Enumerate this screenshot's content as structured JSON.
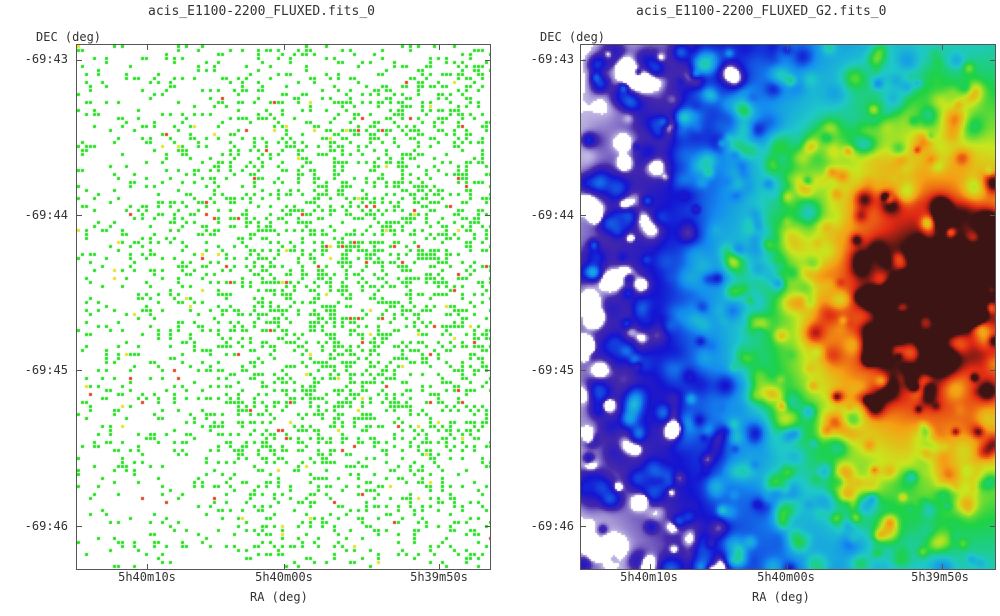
{
  "panels": [
    {
      "title": "acis_E1100-2200_FLUXED.fits_0",
      "xlabel": "RA (deg)",
      "ylabel": "DEC (deg)",
      "yticks": [
        "-69:43",
        "-69:44",
        "-69:45",
        "-69:46"
      ],
      "xticks": [
        "5h40m10s",
        "5h40m00s",
        "5h39m50s"
      ],
      "image_description": "sparse binned X-ray counts map",
      "colors": {
        "primary": "#22e01e",
        "secondary": "#e8e021",
        "rare": "#e0401e"
      }
    },
    {
      "title": "acis_E1100-2200_FLUXED_G2.fits_0",
      "xlabel": "RA (deg)",
      "ylabel": "DEC (deg)",
      "yticks": [
        "-69:43",
        "-69:44",
        "-69:45",
        "-69:46"
      ],
      "xticks": [
        "5h40m10s",
        "5h40m00s",
        "5h39m50s"
      ],
      "image_description": "smoothed X-ray intensity map in rainbow colormap",
      "colors": {
        "low": "#1a1acc",
        "mid": "#16e05a",
        "high": "#f0e020",
        "peak": "#c01010"
      }
    }
  ]
}
